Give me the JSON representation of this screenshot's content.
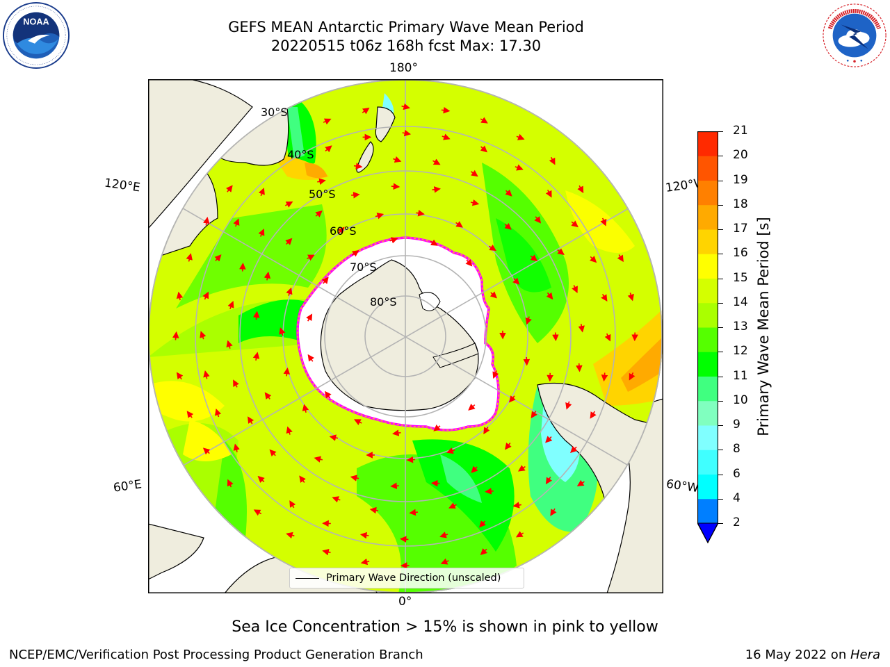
{
  "title_line1": "GEFS MEAN Antarctic Primary Wave Mean Period",
  "title_line2": "20220515 t06z 168h fcst   Max: 17.30",
  "logos": {
    "left": "NOAA",
    "right": "NATIONAL WEATHER SERVICE",
    "left_icon": "noaa-logo",
    "right_icon": "nws-logo"
  },
  "map": {
    "projection": "south-polar-stereographic",
    "lon_labels": {
      "top": "180°",
      "bottom": "0°",
      "upper_left": "120°E",
      "upper_right": "120°W",
      "lower_left": "60°E",
      "lower_right": "60°W"
    },
    "lat_labels": [
      "30°S",
      "40°S",
      "50°S",
      "60°S",
      "70°S",
      "80°S"
    ],
    "legend_label": "Primary Wave Direction (unscaled)",
    "arrow_color": "#ff0000",
    "ice_edge_colors": [
      "#ff00ff",
      "#ff0000",
      "#ffff00"
    ],
    "land_color": "#efedde",
    "ice_color": "#ffffff"
  },
  "colorbar": {
    "label": "Primary Wave Mean Period [s]",
    "ticks": [
      "21",
      "20",
      "19",
      "18",
      "17",
      "16",
      "15",
      "14",
      "13",
      "12",
      "11",
      "10",
      "9",
      "8",
      "6",
      "4",
      "2"
    ],
    "colors": [
      "#0000ff",
      "#007fff",
      "#00ffff",
      "#40ffff",
      "#80ffff",
      "#80ffbf",
      "#40ff80",
      "#00ff00",
      "#55ff00",
      "#aaff00",
      "#d4ff00",
      "#ffff00",
      "#ffd400",
      "#ffaa00",
      "#ff8000",
      "#ff5500",
      "#ff2a00",
      "#ff0000"
    ]
  },
  "note": "Sea Ice Concentration > 15% is shown in pink to yellow",
  "footer_left": "NCEP/EMC/Verification Post Processing Product Generation Branch",
  "footer_right_date": "16 May 2022 on ",
  "footer_right_machine": "Hera"
}
